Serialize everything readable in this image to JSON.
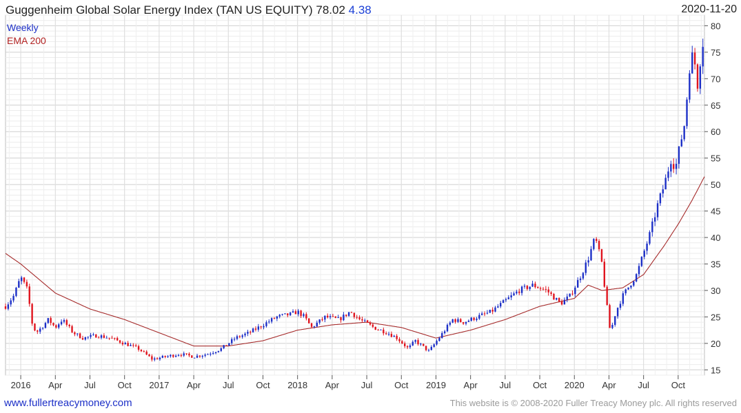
{
  "header": {
    "title": "Guggenheim Global Solar Energy Index (TAN US EQUITY) 78.02",
    "change": "4.38",
    "date": "2020-11-20"
  },
  "legend": {
    "weekly": "Weekly",
    "ema": "EMA 200"
  },
  "footer": {
    "site": "www.fullertreacymoney.com",
    "copyright": "This website is © 2008-2020 Fuller Treacy Money plc. All rights reserved"
  },
  "colors": {
    "up": "#1c2fc7",
    "down": "#e0141e",
    "ema": "#a52a2a",
    "grid": "#d8d8d8"
  },
  "chart_data": {
    "type": "candlestick",
    "title": "Guggenheim Global Solar Energy Index (TAN US EQUITY)",
    "frequency": "Weekly",
    "x_range": [
      2015.89,
      2020.94
    ],
    "ylim": [
      14,
      82
    ],
    "y_ticks": [
      15,
      20,
      25,
      30,
      35,
      40,
      45,
      50,
      55,
      60,
      65,
      70,
      75,
      80
    ],
    "x_ticks": [
      {
        "t": 2016.0,
        "label": "2016"
      },
      {
        "t": 2016.25,
        "label": "Apr"
      },
      {
        "t": 2016.5,
        "label": "Jul"
      },
      {
        "t": 2016.75,
        "label": "Oct"
      },
      {
        "t": 2017.0,
        "label": "2017"
      },
      {
        "t": 2017.25,
        "label": "Apr"
      },
      {
        "t": 2017.5,
        "label": "Jul"
      },
      {
        "t": 2017.75,
        "label": "Oct"
      },
      {
        "t": 2018.0,
        "label": "2018"
      },
      {
        "t": 2018.25,
        "label": "Apr"
      },
      {
        "t": 2018.5,
        "label": "Jul"
      },
      {
        "t": 2018.75,
        "label": "Oct"
      },
      {
        "t": 2019.0,
        "label": "2019"
      },
      {
        "t": 2019.25,
        "label": "Apr"
      },
      {
        "t": 2019.5,
        "label": "Jul"
      },
      {
        "t": 2019.75,
        "label": "Oct"
      },
      {
        "t": 2020.0,
        "label": "2020"
      },
      {
        "t": 2020.25,
        "label": "Apr"
      },
      {
        "t": 2020.5,
        "label": "Jul"
      },
      {
        "t": 2020.75,
        "label": "Oct"
      }
    ],
    "price_path": [
      [
        2015.89,
        27
      ],
      [
        2015.95,
        29
      ],
      [
        2016.0,
        32.5
      ],
      [
        2016.05,
        30
      ],
      [
        2016.08,
        24
      ],
      [
        2016.11,
        22
      ],
      [
        2016.15,
        23
      ],
      [
        2016.2,
        24.5
      ],
      [
        2016.25,
        23
      ],
      [
        2016.3,
        24.5
      ],
      [
        2016.38,
        22
      ],
      [
        2016.45,
        21
      ],
      [
        2016.55,
        21.5
      ],
      [
        2016.65,
        21
      ],
      [
        2016.75,
        20
      ],
      [
        2016.85,
        19
      ],
      [
        2016.95,
        17
      ],
      [
        2017.05,
        17.5
      ],
      [
        2017.15,
        18
      ],
      [
        2017.25,
        17.5
      ],
      [
        2017.35,
        18
      ],
      [
        2017.45,
        19
      ],
      [
        2017.55,
        21
      ],
      [
        2017.65,
        22
      ],
      [
        2017.75,
        23.5
      ],
      [
        2017.85,
        25
      ],
      [
        2017.95,
        25.5
      ],
      [
        2018.0,
        26
      ],
      [
        2018.05,
        25
      ],
      [
        2018.1,
        23
      ],
      [
        2018.2,
        25
      ],
      [
        2018.3,
        24.5
      ],
      [
        2018.38,
        26
      ],
      [
        2018.45,
        24.5
      ],
      [
        2018.55,
        23
      ],
      [
        2018.65,
        22
      ],
      [
        2018.72,
        21
      ],
      [
        2018.8,
        19
      ],
      [
        2018.85,
        20.5
      ],
      [
        2018.95,
        18.5
      ],
      [
        2019.05,
        22
      ],
      [
        2019.12,
        24.5
      ],
      [
        2019.2,
        24
      ],
      [
        2019.3,
        25
      ],
      [
        2019.4,
        26
      ],
      [
        2019.5,
        28
      ],
      [
        2019.6,
        30
      ],
      [
        2019.7,
        31
      ],
      [
        2019.8,
        30
      ],
      [
        2019.9,
        27.5
      ],
      [
        2019.97,
        29
      ],
      [
        2020.05,
        33
      ],
      [
        2020.1,
        36
      ],
      [
        2020.15,
        40
      ],
      [
        2020.2,
        35
      ],
      [
        2020.23,
        28
      ],
      [
        2020.26,
        22
      ],
      [
        2020.3,
        26
      ],
      [
        2020.35,
        29
      ],
      [
        2020.45,
        33
      ],
      [
        2020.5,
        37
      ],
      [
        2020.55,
        41
      ],
      [
        2020.6,
        46
      ],
      [
        2020.65,
        50
      ],
      [
        2020.7,
        55
      ],
      [
        2020.73,
        53
      ],
      [
        2020.76,
        57
      ],
      [
        2020.8,
        62
      ],
      [
        2020.83,
        72
      ],
      [
        2020.86,
        75
      ],
      [
        2020.89,
        69
      ],
      [
        2020.92,
        76
      ],
      [
        2020.94,
        78
      ]
    ],
    "ema_path": [
      [
        2015.89,
        37
      ],
      [
        2016.0,
        35
      ],
      [
        2016.25,
        29.5
      ],
      [
        2016.5,
        26.5
      ],
      [
        2016.75,
        24.5
      ],
      [
        2017.0,
        22
      ],
      [
        2017.25,
        19.5
      ],
      [
        2017.5,
        19.5
      ],
      [
        2017.75,
        20.5
      ],
      [
        2018.0,
        22.5
      ],
      [
        2018.25,
        23.5
      ],
      [
        2018.5,
        24
      ],
      [
        2018.75,
        23
      ],
      [
        2019.0,
        21
      ],
      [
        2019.25,
        22.5
      ],
      [
        2019.5,
        24.5
      ],
      [
        2019.75,
        27
      ],
      [
        2020.0,
        28.5
      ],
      [
        2020.1,
        31
      ],
      [
        2020.2,
        30
      ],
      [
        2020.35,
        30.5
      ],
      [
        2020.5,
        33
      ],
      [
        2020.65,
        38.5
      ],
      [
        2020.75,
        42.5
      ],
      [
        2020.85,
        47
      ],
      [
        2020.94,
        51.5
      ]
    ]
  }
}
